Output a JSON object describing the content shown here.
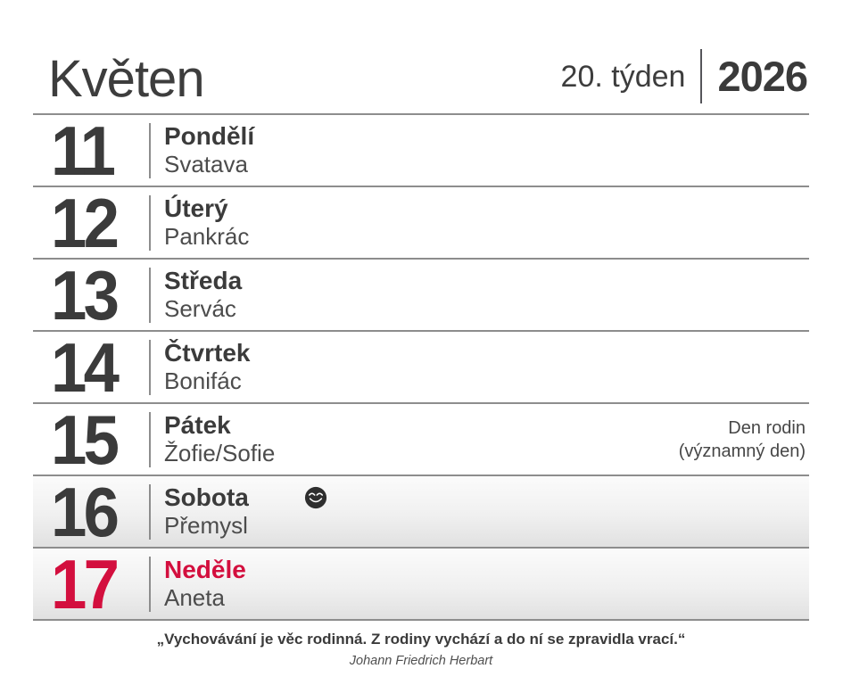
{
  "header": {
    "month": "Květen",
    "week": "20. týden",
    "year": "2026"
  },
  "days": [
    {
      "num": "11",
      "name": "Pondělí",
      "nameday": "Svatava"
    },
    {
      "num": "12",
      "name": "Úterý",
      "nameday": "Pankrác"
    },
    {
      "num": "13",
      "name": "Středa",
      "nameday": "Servác"
    },
    {
      "num": "14",
      "name": "Čtvrtek",
      "nameday": "Bonifác"
    },
    {
      "num": "15",
      "name": "Pátek",
      "nameday": "Žofie/Sofie",
      "note_lines": [
        "Den rodin",
        "(významný den)"
      ]
    },
    {
      "num": "16",
      "name": "Sobota",
      "nameday": "Přemysl",
      "weekend": true,
      "moon_icon": "new-moon-face"
    },
    {
      "num": "17",
      "name": "Neděle",
      "nameday": "Aneta",
      "weekend": true,
      "sunday": true
    }
  ],
  "footer": {
    "quote": "„Vychovávání je věc rodinná. Z rodiny vychází a do ní se zpravidla vrací.“",
    "author": "Johann Friedrich Herbart"
  },
  "colors": {
    "accent_red": "#d30f3e",
    "text_dark": "#3b3b3b",
    "text_medium": "#4c4c4c",
    "line_gray": "#8d8d8d",
    "weekend_bg_top": "#fbfbfb",
    "weekend_bg_bottom": "#e1e1e1"
  }
}
